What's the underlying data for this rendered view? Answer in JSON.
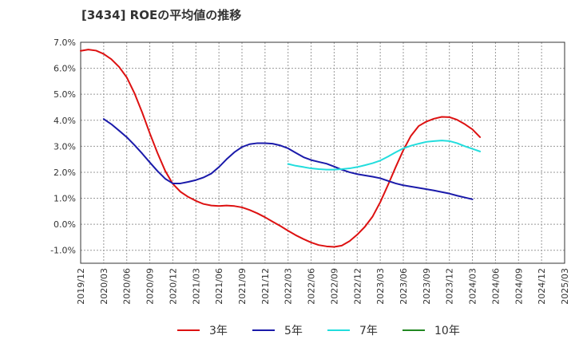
{
  "chart_data": {
    "type": "line",
    "title": "[3434]  ROEの平均値の推移",
    "xlabel": "",
    "ylabel": "",
    "ylim": [
      -1.5,
      7.0
    ],
    "y_ticks": [
      7.0,
      6.0,
      5.0,
      4.0,
      3.0,
      2.0,
      1.0,
      0.0,
      -1.0
    ],
    "y_tick_labels": [
      "7.0%",
      "6.0%",
      "5.0%",
      "4.0%",
      "3.0%",
      "2.0%",
      "1.0%",
      "0.0%",
      "-1.0%"
    ],
    "x_tick_labels": [
      "2019/12",
      "2020/03",
      "2020/06",
      "2020/09",
      "2020/12",
      "2021/03",
      "2021/06",
      "2021/09",
      "2021/12",
      "2022/03",
      "2022/06",
      "2022/09",
      "2022/12",
      "2023/03",
      "2023/06",
      "2023/09",
      "2023/12",
      "2024/03",
      "2024/06",
      "2024/09",
      "2024/12",
      "2025/03"
    ],
    "grid": true,
    "legend_position": "bottom",
    "series": [
      {
        "name": "3年",
        "color": "#dd1111",
        "points": [
          [
            0,
            6.67
          ],
          [
            0.33,
            6.72
          ],
          [
            0.67,
            6.68
          ],
          [
            1,
            6.55
          ],
          [
            1.33,
            6.35
          ],
          [
            1.67,
            6.05
          ],
          [
            2,
            5.65
          ],
          [
            2.33,
            5.05
          ],
          [
            2.67,
            4.3
          ],
          [
            3,
            3.5
          ],
          [
            3.33,
            2.75
          ],
          [
            3.67,
            2.05
          ],
          [
            4,
            1.55
          ],
          [
            4.33,
            1.25
          ],
          [
            4.67,
            1.05
          ],
          [
            5,
            0.9
          ],
          [
            5.33,
            0.78
          ],
          [
            5.67,
            0.72
          ],
          [
            6,
            0.7
          ],
          [
            6.33,
            0.72
          ],
          [
            6.67,
            0.7
          ],
          [
            7,
            0.65
          ],
          [
            7.33,
            0.55
          ],
          [
            7.67,
            0.42
          ],
          [
            8,
            0.27
          ],
          [
            8.33,
            0.1
          ],
          [
            8.67,
            -0.07
          ],
          [
            9,
            -0.25
          ],
          [
            9.33,
            -0.42
          ],
          [
            9.67,
            -0.57
          ],
          [
            10,
            -0.7
          ],
          [
            10.33,
            -0.8
          ],
          [
            10.67,
            -0.85
          ],
          [
            11,
            -0.87
          ],
          [
            11.33,
            -0.82
          ],
          [
            11.67,
            -0.65
          ],
          [
            12,
            -0.4
          ],
          [
            12.33,
            -0.1
          ],
          [
            12.67,
            0.3
          ],
          [
            13,
            0.85
          ],
          [
            13.33,
            1.5
          ],
          [
            13.67,
            2.2
          ],
          [
            14,
            2.85
          ],
          [
            14.33,
            3.4
          ],
          [
            14.67,
            3.78
          ],
          [
            15,
            3.95
          ],
          [
            15.33,
            4.06
          ],
          [
            15.67,
            4.13
          ],
          [
            16,
            4.12
          ],
          [
            16.33,
            4.02
          ],
          [
            16.67,
            3.85
          ],
          [
            17,
            3.65
          ],
          [
            17.33,
            3.35
          ]
        ]
      },
      {
        "name": "5年",
        "color": "#1a1aaa",
        "points": [
          [
            1,
            4.05
          ],
          [
            1.33,
            3.85
          ],
          [
            1.67,
            3.6
          ],
          [
            2,
            3.35
          ],
          [
            2.33,
            3.05
          ],
          [
            2.67,
            2.72
          ],
          [
            3,
            2.38
          ],
          [
            3.33,
            2.05
          ],
          [
            3.67,
            1.75
          ],
          [
            4,
            1.57
          ],
          [
            4.33,
            1.57
          ],
          [
            4.67,
            1.63
          ],
          [
            5,
            1.7
          ],
          [
            5.33,
            1.8
          ],
          [
            5.67,
            1.95
          ],
          [
            6,
            2.2
          ],
          [
            6.33,
            2.5
          ],
          [
            6.67,
            2.77
          ],
          [
            7,
            2.97
          ],
          [
            7.33,
            3.08
          ],
          [
            7.67,
            3.12
          ],
          [
            8,
            3.12
          ],
          [
            8.33,
            3.1
          ],
          [
            8.67,
            3.03
          ],
          [
            9,
            2.92
          ],
          [
            9.33,
            2.75
          ],
          [
            9.67,
            2.58
          ],
          [
            10,
            2.47
          ],
          [
            10.33,
            2.4
          ],
          [
            10.67,
            2.33
          ],
          [
            11,
            2.22
          ],
          [
            11.33,
            2.1
          ],
          [
            11.67,
            2.0
          ],
          [
            12,
            1.93
          ],
          [
            12.33,
            1.88
          ],
          [
            12.67,
            1.83
          ],
          [
            13,
            1.77
          ],
          [
            13.33,
            1.67
          ],
          [
            13.67,
            1.57
          ],
          [
            14,
            1.5
          ],
          [
            14.33,
            1.45
          ],
          [
            14.67,
            1.4
          ],
          [
            15,
            1.35
          ],
          [
            15.33,
            1.3
          ],
          [
            15.67,
            1.24
          ],
          [
            16,
            1.18
          ],
          [
            16.33,
            1.1
          ],
          [
            16.67,
            1.03
          ],
          [
            17,
            0.96
          ]
        ]
      },
      {
        "name": "7年",
        "color": "#22dddd",
        "points": [
          [
            9,
            2.32
          ],
          [
            9.33,
            2.25
          ],
          [
            9.67,
            2.2
          ],
          [
            10,
            2.15
          ],
          [
            10.33,
            2.12
          ],
          [
            10.67,
            2.1
          ],
          [
            11,
            2.1
          ],
          [
            11.33,
            2.12
          ],
          [
            11.67,
            2.15
          ],
          [
            12,
            2.2
          ],
          [
            12.33,
            2.27
          ],
          [
            12.67,
            2.35
          ],
          [
            13,
            2.45
          ],
          [
            13.33,
            2.6
          ],
          [
            13.67,
            2.77
          ],
          [
            14,
            2.92
          ],
          [
            14.33,
            3.02
          ],
          [
            14.67,
            3.1
          ],
          [
            15,
            3.17
          ],
          [
            15.33,
            3.2
          ],
          [
            15.67,
            3.22
          ],
          [
            16,
            3.2
          ],
          [
            16.33,
            3.12
          ],
          [
            16.67,
            3.0
          ],
          [
            17,
            2.9
          ],
          [
            17.33,
            2.8
          ]
        ]
      },
      {
        "name": "10年",
        "color": "#228822",
        "points": []
      }
    ]
  }
}
